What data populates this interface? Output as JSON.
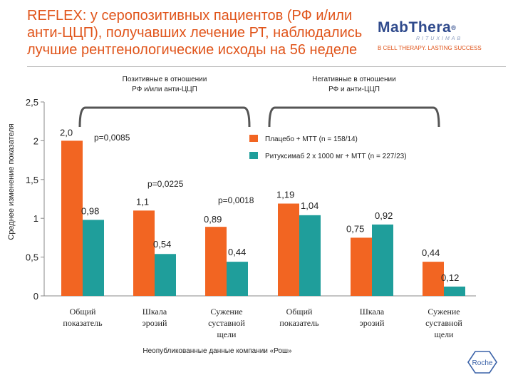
{
  "title": {
    "line1": "REFLEX: у серопозитивных пациентов (РФ и/или",
    "line2": "анти-ЦЦП), получавших лечение РТ, наблюдались",
    "line3": "лучшие рентгенологические исходы на 56 неделе"
  },
  "logo": {
    "name": "MabThera",
    "reg": "®",
    "sub": "RITUXIMAB",
    "tagline": "B CELL THERAPY. LASTING SUCCESS"
  },
  "roche": {
    "text": "Roche"
  },
  "colors": {
    "placebo": "#f26522",
    "rituximab": "#1f9e9b",
    "title": "#e0541a",
    "bracket": "#555555"
  },
  "chart_data": {
    "type": "bar",
    "ylabel": "Среднее изменение показателя",
    "ylim": [
      0,
      2.5
    ],
    "yticks": [
      {
        "value": 0,
        "label": "0"
      },
      {
        "value": 0.5,
        "label": "0,5"
      },
      {
        "value": 1,
        "label": "1"
      },
      {
        "value": 1.5,
        "label": "1,5"
      },
      {
        "value": 2,
        "label": "2"
      },
      {
        "value": 2.5,
        "label": "2,5"
      }
    ],
    "categories": [
      [
        "Общий",
        "показатель"
      ],
      [
        "Шкала",
        "эрозий"
      ],
      [
        "Сужение",
        "суставной",
        "щели"
      ],
      [
        "Общий",
        "показатель"
      ],
      [
        "Шкала",
        "эрозий"
      ],
      [
        "Сужение",
        "суставной",
        "щели"
      ]
    ],
    "series": [
      {
        "name": "Плацебо + МТТ (n = 158/14)",
        "color": "#f26522",
        "values": [
          2.0,
          1.1,
          0.89,
          1.19,
          0.75,
          0.44
        ],
        "labels": [
          "2,0",
          "1,1",
          "0,89",
          "1,19",
          "0,75",
          "0,44"
        ]
      },
      {
        "name": "Ритуксимаб 2 x 1000 мг + МТТ  (n = 227/23)",
        "color": "#1f9e9b",
        "values": [
          0.98,
          0.54,
          0.44,
          1.04,
          0.92,
          0.12
        ],
        "labels": [
          "0,98",
          "0,54",
          "0,44",
          "1,04",
          "0,92",
          "0,12"
        ]
      }
    ],
    "groups": [
      {
        "lines": [
          "Позитивные в отношении",
          "РФ и/или анти-ЦЦП"
        ]
      },
      {
        "lines": [
          "Негативные в отношении",
          "РФ и анти-ЦЦП"
        ]
      }
    ],
    "pvalues": [
      "p=0,0085",
      "p=0,0225",
      "p=0,0018"
    ],
    "footnote": "Неопубликованные данные компании «Рош»"
  }
}
